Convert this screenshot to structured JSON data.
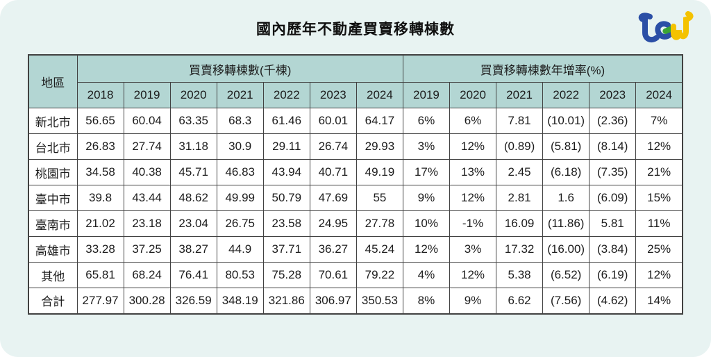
{
  "page": {
    "logo": {
      "name": "ted-brand-logo",
      "colors": {
        "blue": "#2b4fa6",
        "green": "#3aa434",
        "yellow": "#f4c200"
      }
    },
    "colors": {
      "card_background": "#e8f3f2",
      "header_cell_background": "#b3d6d3",
      "table_border": "#414141",
      "text": "#1c1c1c"
    }
  },
  "chart_data": {
    "type": "table",
    "title": "國內歷年不動產買賣移轉棟數",
    "region_header": "地區",
    "groups": [
      {
        "label": "買賣移轉棟數(千棟)",
        "years": [
          "2018",
          "2019",
          "2020",
          "2021",
          "2022",
          "2023",
          "2024"
        ]
      },
      {
        "label": "買賣移轉棟數年增率(%)",
        "years": [
          "2019",
          "2020",
          "2021",
          "2022",
          "2023",
          "2024"
        ]
      }
    ],
    "rows": [
      {
        "region": "新北市",
        "counts": [
          "56.65",
          "60.04",
          "63.35",
          "68.3",
          "61.46",
          "60.01",
          "64.17"
        ],
        "rates": [
          "6%",
          "6%",
          "7.81",
          "(10.01)",
          "(2.36)",
          "7%"
        ]
      },
      {
        "region": "台北市",
        "counts": [
          "26.83",
          "27.74",
          "31.18",
          "30.9",
          "29.11",
          "26.74",
          "29.93"
        ],
        "rates": [
          "3%",
          "12%",
          "(0.89)",
          "(5.81)",
          "(8.14)",
          "12%"
        ]
      },
      {
        "region": "桃園市",
        "counts": [
          "34.58",
          "40.38",
          "45.71",
          "46.83",
          "43.94",
          "40.71",
          "49.19"
        ],
        "rates": [
          "17%",
          "13%",
          "2.45",
          "(6.18)",
          "(7.35)",
          "21%"
        ]
      },
      {
        "region": "臺中市",
        "counts": [
          "39.8",
          "43.44",
          "48.62",
          "49.99",
          "50.79",
          "47.69",
          "55"
        ],
        "rates": [
          "9%",
          "12%",
          "2.81",
          "1.6",
          "(6.09)",
          "15%"
        ]
      },
      {
        "region": "臺南市",
        "counts": [
          "21.02",
          "23.18",
          "23.04",
          "26.75",
          "23.58",
          "24.95",
          "27.78"
        ],
        "rates": [
          "10%",
          "-1%",
          "16.09",
          "(11.86)",
          "5.81",
          "11%"
        ]
      },
      {
        "region": "高雄市",
        "counts": [
          "33.28",
          "37.25",
          "38.27",
          "44.9",
          "37.71",
          "36.27",
          "45.24"
        ],
        "rates": [
          "12%",
          "3%",
          "17.32",
          "(16.00)",
          "(3.84)",
          "25%"
        ]
      },
      {
        "region": "其他",
        "counts": [
          "65.81",
          "68.24",
          "76.41",
          "80.53",
          "75.28",
          "70.61",
          "79.22"
        ],
        "rates": [
          "4%",
          "12%",
          "5.38",
          "(6.52)",
          "(6.19)",
          "12%"
        ]
      },
      {
        "region": "合計",
        "counts": [
          "277.97",
          "300.28",
          "326.59",
          "348.19",
          "321.86",
          "306.97",
          "350.53"
        ],
        "rates": [
          "8%",
          "9%",
          "6.62",
          "(7.56)",
          "(4.62)",
          "14%"
        ]
      }
    ]
  }
}
